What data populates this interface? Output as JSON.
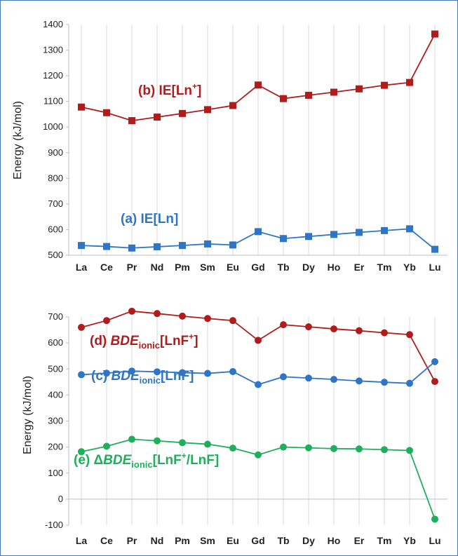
{
  "chart_data": [
    {
      "type": "line",
      "ylabel": "Energy (kJ/mol)",
      "ylim": [
        500,
        1400
      ],
      "yticks": [
        500,
        600,
        700,
        800,
        900,
        1000,
        1100,
        1200,
        1300,
        1400
      ],
      "grid": "vertical",
      "categories": [
        "La",
        "Ce",
        "Pr",
        "Nd",
        "Pm",
        "Sm",
        "Eu",
        "Gd",
        "Tb",
        "Dy",
        "Ho",
        "Er",
        "Tm",
        "Yb",
        "Lu"
      ],
      "series": [
        {
          "name": "IE[Ln+]",
          "annotation": {
            "prefix": "(b) IE[Ln",
            "sup": "+",
            "suffix": "]"
          },
          "color": "#b01c1c",
          "marker": "square",
          "values": [
            1078,
            1056,
            1025,
            1039,
            1053,
            1068,
            1084,
            1164,
            1111,
            1124,
            1136,
            1149,
            1163,
            1174,
            1363
          ]
        },
        {
          "name": "IE[Ln]",
          "annotation": {
            "prefix": "(a) IE[Ln]"
          },
          "color": "#2e75c6",
          "marker": "square",
          "values": [
            538,
            534,
            528,
            533,
            538,
            544,
            540,
            592,
            565,
            573,
            581,
            589,
            596,
            603,
            523
          ]
        }
      ]
    },
    {
      "type": "line",
      "ylabel": "Energy (kJ/mol)",
      "ylim": [
        -100,
        700
      ],
      "yticks": [
        -100,
        0,
        100,
        200,
        300,
        400,
        500,
        600,
        700
      ],
      "grid": "vertical",
      "categories": [
        "La",
        "Ce",
        "Pr",
        "Nd",
        "Pm",
        "Sm",
        "Eu",
        "Gd",
        "Tb",
        "Dy",
        "Ho",
        "Er",
        "Tm",
        "Yb",
        "Lu"
      ],
      "series": [
        {
          "name": "BDEionic[LnF+]",
          "annotation": {
            "prefix": "(d) ",
            "italic": "BDE",
            "sub": "ionic",
            "bracket": "[LnF",
            "sup": "+",
            "suffix": "]"
          },
          "color": "#b01c1c",
          "marker": "circle",
          "values": [
            660,
            686,
            722,
            713,
            703,
            694,
            686,
            610,
            670,
            662,
            654,
            647,
            639,
            632,
            452
          ]
        },
        {
          "name": "BDEionic[LnF]",
          "annotation": {
            "prefix": "(c) ",
            "italic": "BDE",
            "sub": "ionic",
            "bracket": "[LnF]"
          },
          "color": "#2e75c6",
          "marker": "circle",
          "values": [
            478,
            484,
            492,
            489,
            486,
            483,
            490,
            440,
            470,
            465,
            460,
            454,
            449,
            445,
            528
          ]
        },
        {
          "name": "ΔBDEionic[LnF+/LnF]",
          "annotation": {
            "prefix": "(e) Δ",
            "italic": "BDE",
            "sub": "ionic",
            "bracket": "[LnF",
            "sup": "+",
            "suffix": "/LnF]"
          },
          "color": "#1fae5b",
          "marker": "circle",
          "values": [
            182,
            203,
            230,
            224,
            217,
            211,
            196,
            170,
            200,
            197,
            194,
            193,
            190,
            187,
            -77
          ]
        }
      ]
    }
  ]
}
